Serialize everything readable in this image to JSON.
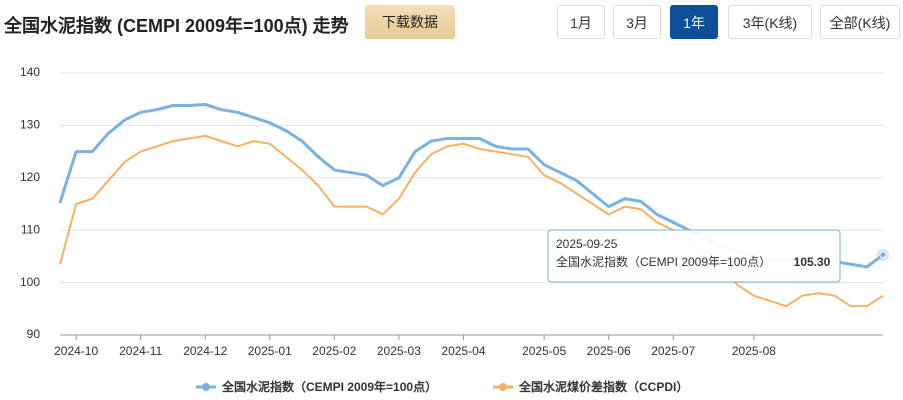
{
  "header": {
    "title": "全国水泥指数 (CEMPI 2009年=100点) 走势",
    "download": "下载数据",
    "ranges": [
      "1月",
      "3月",
      "1年",
      "3年(K线)",
      "全部(K线)"
    ],
    "active_range": 2
  },
  "chart_data": {
    "type": "line",
    "categories": [
      null,
      "2024-10",
      null,
      null,
      null,
      "2024-11",
      null,
      null,
      null,
      "2024-12",
      null,
      null,
      null,
      "2025-01",
      null,
      null,
      null,
      "2025-02",
      null,
      null,
      null,
      "2025-03",
      null,
      null,
      null,
      "2025-04",
      null,
      null,
      null,
      null,
      "2025-05",
      null,
      null,
      null,
      "2025-06",
      null,
      null,
      null,
      "2025-07",
      null,
      null,
      null,
      null,
      "2025-08",
      null,
      null,
      null,
      null,
      null,
      null,
      null,
      null
    ],
    "series": [
      {
        "name": "全国水泥指数（CEMPI 2009年=100点）",
        "color": "#7ab1e3",
        "values": [
          115.2,
          125,
          125,
          128.5,
          131,
          132.5,
          133,
          133.8,
          133.8,
          134,
          133,
          132.5,
          131.5,
          130.5,
          129,
          127,
          124,
          121.5,
          121,
          120.5,
          118.5,
          120,
          125,
          127,
          127.5,
          127.5,
          127.5,
          126,
          125.5,
          125.5,
          122.5,
          121,
          119.5,
          117,
          114.5,
          116,
          115.5,
          113,
          111.5,
          110,
          108.5,
          107,
          105.8,
          105,
          104.5,
          104.3,
          104.5,
          104.5,
          104,
          103.5,
          103,
          105.3
        ]
      },
      {
        "name": "全国水泥煤价差指数（CCPDI）",
        "color": "#f5b266",
        "values": [
          103.5,
          115,
          116,
          119.5,
          123,
          125,
          126,
          127,
          127.5,
          128,
          127,
          126,
          127,
          126.5,
          124,
          121.5,
          118.5,
          114.5,
          114.5,
          114.5,
          113,
          116,
          121,
          124.5,
          126,
          126.5,
          125.5,
          125,
          124.5,
          124,
          120.5,
          119,
          117,
          115,
          113,
          114.5,
          114,
          111.5,
          110,
          107.5,
          105,
          102.5,
          99.5,
          97.5,
          96.5,
          95.5,
          97.5,
          98,
          97.5,
          95.5,
          95.5,
          97.5
        ]
      }
    ],
    "ylim": [
      90,
      140
    ],
    "yticks": [
      90,
      100,
      110,
      120,
      130,
      140
    ],
    "grid": true,
    "legend": "bottom",
    "tooltip": {
      "date": "2025-09-25",
      "label": "全国水泥指数（CEMPI 2009年=100点）",
      "value": "105.30"
    }
  }
}
